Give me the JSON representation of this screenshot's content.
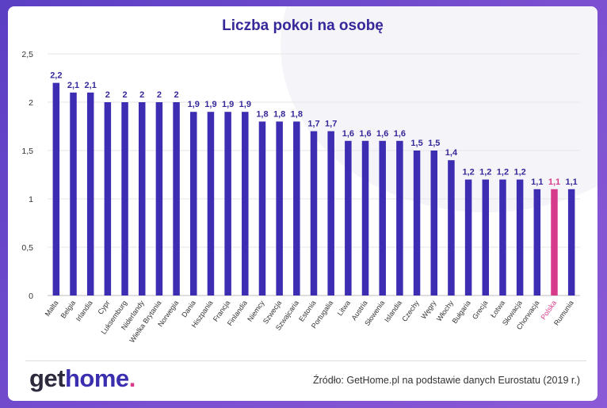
{
  "brand": {
    "part1": "get",
    "part2": "home",
    "part3": "."
  },
  "source": "Źródło: GetHome.pl na podstawie danych Eurostatu (2019 r.)",
  "colors": {
    "bar": "#3d2db2",
    "highlight": "#d63a8a",
    "title": "#35289a",
    "label": "#35289a"
  },
  "chart_data": {
    "type": "bar",
    "title": "Liczba pokoi na osobę",
    "xlabel": "",
    "ylabel": "",
    "ylim": [
      0,
      2.5
    ],
    "yticks": [
      0,
      0.5,
      1,
      1.5,
      2,
      2.5
    ],
    "ytick_labels": [
      "0",
      "0,5",
      "1",
      "1,5",
      "2",
      "2,5"
    ],
    "grid": true,
    "categories": [
      "Malta",
      "Belgia",
      "Irlandia",
      "Cypr",
      "Luksemburg",
      "Niderlandy",
      "Wielka Brytania",
      "Norwegia",
      "Dania",
      "Hiszpania",
      "Francja",
      "Finlandia",
      "Niemcy",
      "Szwecja",
      "Szwajcaria",
      "Estonia",
      "Portugalia",
      "Litwa",
      "Austria",
      "Słowenia",
      "Islandia",
      "Czechy",
      "Węgry",
      "Włochy",
      "Bułgaria",
      "Grecja",
      "Łotwa",
      "Słowacja",
      "Chorwacja",
      "Polska",
      "Rumunia"
    ],
    "values": [
      2.2,
      2.1,
      2.1,
      2,
      2,
      2,
      2,
      2,
      1.9,
      1.9,
      1.9,
      1.9,
      1.8,
      1.8,
      1.8,
      1.7,
      1.7,
      1.6,
      1.6,
      1.6,
      1.6,
      1.5,
      1.5,
      1.4,
      1.2,
      1.2,
      1.2,
      1.2,
      1.1,
      1.1,
      1.1
    ],
    "value_labels": [
      "2,2",
      "2,1",
      "2,1",
      "2",
      "2",
      "2",
      "2",
      "2",
      "1,9",
      "1,9",
      "1,9",
      "1,9",
      "1,8",
      "1,8",
      "1,8",
      "1,7",
      "1,7",
      "1,6",
      "1,6",
      "1,6",
      "1,6",
      "1,5",
      "1,5",
      "1,4",
      "1,2",
      "1,2",
      "1,2",
      "1,2",
      "1,1",
      "1,1",
      "1,1"
    ],
    "highlight": "Polska"
  }
}
